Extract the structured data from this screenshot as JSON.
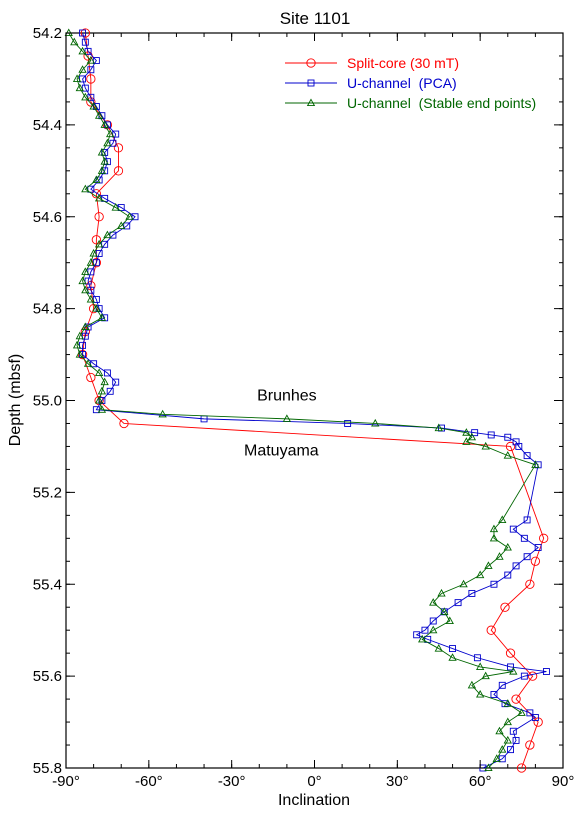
{
  "chart_data": {
    "type": "line",
    "title": "Site 1101",
    "xlabel": "Inclination",
    "ylabel": "Depth (mbsf)",
    "xlim": [
      -90,
      90
    ],
    "ylim": [
      54.2,
      55.8
    ],
    "y_inverted": true,
    "x_ticks": [
      {
        "value": -90,
        "label": "-90°"
      },
      {
        "value": -60,
        "label": "-60°"
      },
      {
        "value": -30,
        "label": "-30°"
      },
      {
        "value": 0,
        "label": "0°"
      },
      {
        "value": 30,
        "label": "30°"
      },
      {
        "value": 60,
        "label": "60°"
      },
      {
        "value": 90,
        "label": "90°"
      }
    ],
    "y_ticks": [
      {
        "value": 54.2,
        "label": "54.2"
      },
      {
        "value": 54.4,
        "label": "54.4"
      },
      {
        "value": 54.6,
        "label": "54.6"
      },
      {
        "value": 54.8,
        "label": "54.8"
      },
      {
        "value": 55.0,
        "label": "55.0"
      },
      {
        "value": 55.2,
        "label": "55.2"
      },
      {
        "value": 55.4,
        "label": "55.4"
      },
      {
        "value": 55.6,
        "label": "55.6"
      },
      {
        "value": 55.8,
        "label": "55.8"
      }
    ],
    "legend_position": "top-right",
    "annotations": [
      {
        "text": "Brunhes",
        "x": -10,
        "y": 55.0
      },
      {
        "text": "Matuyama",
        "x": -12,
        "y": 55.12
      }
    ],
    "series": [
      {
        "name": "Split-core (30 mT)",
        "color": "#ff0000",
        "marker": "circle",
        "points": [
          [
            -83,
            54.2
          ],
          [
            -82,
            54.25
          ],
          [
            -81,
            54.3
          ],
          [
            -81,
            54.35
          ],
          [
            -75,
            54.4
          ],
          [
            -71,
            54.45
          ],
          [
            -71,
            54.5
          ],
          [
            -79,
            54.55
          ],
          [
            -78,
            54.6
          ],
          [
            -79,
            54.65
          ],
          [
            -79,
            54.7
          ],
          [
            -81,
            54.75
          ],
          [
            -80,
            54.8
          ],
          [
            -83,
            54.85
          ],
          [
            -84,
            54.9
          ],
          [
            -81,
            54.95
          ],
          [
            -78,
            55.0
          ],
          [
            -69,
            55.05
          ],
          [
            71,
            55.1
          ],
          [
            83,
            55.3
          ],
          [
            80,
            55.35
          ],
          [
            78,
            55.4
          ],
          [
            69,
            55.45
          ],
          [
            64,
            55.5
          ],
          [
            71,
            55.55
          ],
          [
            79,
            55.6
          ],
          [
            73,
            55.65
          ],
          [
            81,
            55.7
          ],
          [
            78,
            55.75
          ],
          [
            75,
            55.8
          ]
        ]
      },
      {
        "name": "U-channel  (PCA)",
        "color": "#0000cc",
        "marker": "square",
        "points": [
          [
            -84,
            54.2
          ],
          [
            -83,
            54.22
          ],
          [
            -82,
            54.24
          ],
          [
            -79,
            54.26
          ],
          [
            -81,
            54.28
          ],
          [
            -84,
            54.3
          ],
          [
            -83,
            54.32
          ],
          [
            -81,
            54.34
          ],
          [
            -79,
            54.36
          ],
          [
            -77,
            54.38
          ],
          [
            -75,
            54.4
          ],
          [
            -72,
            54.42
          ],
          [
            -73,
            54.44
          ],
          [
            -76,
            54.46
          ],
          [
            -75,
            54.48
          ],
          [
            -76,
            54.5
          ],
          [
            -78,
            54.52
          ],
          [
            -81,
            54.54
          ],
          [
            -76,
            54.56
          ],
          [
            -70,
            54.58
          ],
          [
            -65,
            54.6
          ],
          [
            -68,
            54.62
          ],
          [
            -73,
            54.64
          ],
          [
            -76,
            54.66
          ],
          [
            -78,
            54.68
          ],
          [
            -79,
            54.7
          ],
          [
            -81,
            54.72
          ],
          [
            -82,
            54.74
          ],
          [
            -81,
            54.76
          ],
          [
            -79,
            54.78
          ],
          [
            -78,
            54.8
          ],
          [
            -76,
            54.82
          ],
          [
            -82,
            54.84
          ],
          [
            -83,
            54.86
          ],
          [
            -84,
            54.88
          ],
          [
            -84,
            54.9
          ],
          [
            -80,
            54.92
          ],
          [
            -75,
            54.94
          ],
          [
            -72,
            54.96
          ],
          [
            -74,
            54.98
          ],
          [
            -77,
            55.0
          ],
          [
            -79,
            55.02
          ],
          [
            -40,
            55.04
          ],
          [
            12,
            55.05
          ],
          [
            46,
            55.06
          ],
          [
            58,
            55.07
          ],
          [
            64,
            55.075
          ],
          [
            70,
            55.08
          ],
          [
            73,
            55.09
          ],
          [
            74,
            55.1
          ],
          [
            77,
            55.12
          ],
          [
            81,
            55.14
          ],
          [
            77,
            55.26
          ],
          [
            72,
            55.28
          ],
          [
            76,
            55.3
          ],
          [
            81,
            55.32
          ],
          [
            77,
            55.34
          ],
          [
            73,
            55.36
          ],
          [
            70,
            55.38
          ],
          [
            65,
            55.4
          ],
          [
            57,
            55.42
          ],
          [
            52,
            55.44
          ],
          [
            47,
            55.46
          ],
          [
            43,
            55.48
          ],
          [
            40,
            55.5
          ],
          [
            37,
            55.51
          ],
          [
            41,
            55.52
          ],
          [
            50,
            55.54
          ],
          [
            59,
            55.56
          ],
          [
            71,
            55.58
          ],
          [
            84,
            55.59
          ],
          [
            76,
            55.6
          ],
          [
            68,
            55.62
          ],
          [
            65,
            55.64
          ],
          [
            69,
            55.66
          ],
          [
            78,
            55.68
          ],
          [
            80,
            55.69
          ],
          [
            72,
            55.72
          ],
          [
            73,
            55.74
          ],
          [
            71,
            55.76
          ],
          [
            68,
            55.78
          ],
          [
            61,
            55.8
          ]
        ]
      },
      {
        "name": "U-channel  (Stable end points)",
        "color": "#006600",
        "marker": "triangle",
        "points": [
          [
            -89,
            54.2
          ],
          [
            -87,
            54.22
          ],
          [
            -84,
            54.24
          ],
          [
            -81,
            54.26
          ],
          [
            -84,
            54.28
          ],
          [
            -86,
            54.3
          ],
          [
            -85,
            54.32
          ],
          [
            -83,
            54.34
          ],
          [
            -80,
            54.36
          ],
          [
            -78,
            54.38
          ],
          [
            -76,
            54.4
          ],
          [
            -74,
            54.42
          ],
          [
            -75,
            54.44
          ],
          [
            -77,
            54.46
          ],
          [
            -76,
            54.48
          ],
          [
            -77,
            54.5
          ],
          [
            -79,
            54.52
          ],
          [
            -83,
            54.54
          ],
          [
            -78,
            54.56
          ],
          [
            -72,
            54.58
          ],
          [
            -67,
            54.6
          ],
          [
            -70,
            54.62
          ],
          [
            -75,
            54.64
          ],
          [
            -78,
            54.66
          ],
          [
            -80,
            54.68
          ],
          [
            -81,
            54.7
          ],
          [
            -83,
            54.72
          ],
          [
            -84,
            54.74
          ],
          [
            -83,
            54.76
          ],
          [
            -81,
            54.78
          ],
          [
            -79,
            54.8
          ],
          [
            -77,
            54.82
          ],
          [
            -83,
            54.84
          ],
          [
            -85,
            54.86
          ],
          [
            -86,
            54.88
          ],
          [
            -85,
            54.9
          ],
          [
            -82,
            54.92
          ],
          [
            -78,
            54.94
          ],
          [
            -76,
            54.96
          ],
          [
            -77,
            54.98
          ],
          [
            -78,
            55.0
          ],
          [
            -77,
            55.02
          ],
          [
            -55,
            55.03
          ],
          [
            -10,
            55.04
          ],
          [
            22,
            55.05
          ],
          [
            45,
            55.06
          ],
          [
            55,
            55.07
          ],
          [
            57,
            55.08
          ],
          [
            55,
            55.09
          ],
          [
            62,
            55.1
          ],
          [
            70,
            55.12
          ],
          [
            80,
            55.14
          ],
          [
            68,
            55.26
          ],
          [
            65,
            55.28
          ],
          [
            65,
            55.3
          ],
          [
            70,
            55.32
          ],
          [
            67,
            55.34
          ],
          [
            63,
            55.36
          ],
          [
            60,
            55.38
          ],
          [
            54,
            55.4
          ],
          [
            46,
            55.42
          ],
          [
            43,
            55.44
          ],
          [
            47,
            55.46
          ],
          [
            49,
            55.48
          ],
          [
            43,
            55.5
          ],
          [
            39,
            55.52
          ],
          [
            45,
            55.54
          ],
          [
            50,
            55.56
          ],
          [
            60,
            55.58
          ],
          [
            72,
            55.59
          ],
          [
            62,
            55.6
          ],
          [
            57,
            55.62
          ],
          [
            60,
            55.64
          ],
          [
            70,
            55.66
          ],
          [
            75,
            55.68
          ],
          [
            70,
            55.7
          ],
          [
            67,
            55.72
          ],
          [
            70,
            55.74
          ],
          [
            68,
            55.76
          ],
          [
            66,
            55.78
          ],
          [
            63,
            55.8
          ]
        ]
      }
    ]
  }
}
